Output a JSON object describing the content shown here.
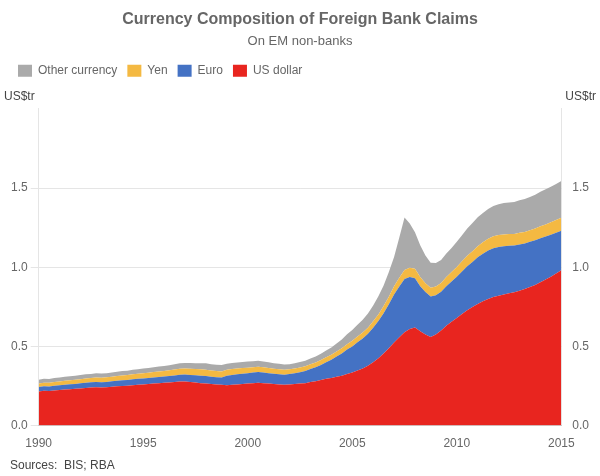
{
  "chart_data": {
    "type": "area",
    "stacked": true,
    "title": "Currency Composition of Foreign Bank Claims",
    "subtitle": "On EM non-banks",
    "ylabel": "US$tr",
    "y2label": "US$tr",
    "source": "Sources:  BIS; RBA",
    "legend": "upper left",
    "grid": "y",
    "x": [
      1990.0,
      1990.25,
      1990.5,
      1990.75,
      1991.0,
      1991.25,
      1991.5,
      1991.75,
      1992.0,
      1992.25,
      1992.5,
      1992.75,
      1993.0,
      1993.25,
      1993.5,
      1993.75,
      1994.0,
      1994.25,
      1994.5,
      1994.75,
      1995.0,
      1995.25,
      1995.5,
      1995.75,
      1996.0,
      1996.25,
      1996.5,
      1996.75,
      1997.0,
      1997.25,
      1997.5,
      1997.75,
      1998.0,
      1998.25,
      1998.5,
      1998.75,
      1999.0,
      1999.25,
      1999.5,
      1999.75,
      2000.0,
      2000.25,
      2000.5,
      2000.75,
      2001.0,
      2001.25,
      2001.5,
      2001.75,
      2002.0,
      2002.25,
      2002.5,
      2002.75,
      2003.0,
      2003.25,
      2003.5,
      2003.75,
      2004.0,
      2004.25,
      2004.5,
      2004.75,
      2005.0,
      2005.25,
      2005.5,
      2005.75,
      2006.0,
      2006.25,
      2006.5,
      2006.75,
      2007.0,
      2007.25,
      2007.5,
      2007.75,
      2008.0,
      2008.25,
      2008.5,
      2008.75,
      2009.0,
      2009.25,
      2009.5,
      2009.75,
      2010.0,
      2010.25,
      2010.5,
      2010.75,
      2011.0,
      2011.25,
      2011.5,
      2011.75,
      2012.0,
      2012.25,
      2012.5,
      2012.75,
      2013.0,
      2013.25,
      2013.5,
      2013.75,
      2014.0,
      2014.25,
      2014.5,
      2014.75,
      2015.0
    ],
    "series": [
      {
        "name": "US dollar",
        "color": "#e8251f",
        "values": [
          0.215,
          0.22,
          0.218,
          0.222,
          0.225,
          0.228,
          0.23,
          0.232,
          0.235,
          0.238,
          0.24,
          0.242,
          0.24,
          0.242,
          0.245,
          0.248,
          0.25,
          0.252,
          0.255,
          0.258,
          0.26,
          0.262,
          0.265,
          0.268,
          0.27,
          0.272,
          0.275,
          0.278,
          0.278,
          0.275,
          0.272,
          0.268,
          0.265,
          0.262,
          0.26,
          0.258,
          0.255,
          0.258,
          0.26,
          0.262,
          0.265,
          0.268,
          0.27,
          0.268,
          0.265,
          0.262,
          0.26,
          0.258,
          0.26,
          0.262,
          0.265,
          0.268,
          0.275,
          0.28,
          0.288,
          0.295,
          0.3,
          0.308,
          0.315,
          0.325,
          0.335,
          0.348,
          0.36,
          0.378,
          0.4,
          0.425,
          0.455,
          0.488,
          0.525,
          0.558,
          0.59,
          0.61,
          0.62,
          0.595,
          0.575,
          0.56,
          0.575,
          0.6,
          0.63,
          0.655,
          0.68,
          0.705,
          0.728,
          0.748,
          0.768,
          0.785,
          0.8,
          0.812,
          0.82,
          0.828,
          0.835,
          0.842,
          0.852,
          0.862,
          0.875,
          0.888,
          0.905,
          0.922,
          0.94,
          0.96,
          0.98
        ]
      },
      {
        "name": "Euro",
        "color": "#4472c4",
        "values": [
          0.028,
          0.028,
          0.029,
          0.029,
          0.03,
          0.03,
          0.031,
          0.031,
          0.032,
          0.032,
          0.033,
          0.033,
          0.034,
          0.034,
          0.035,
          0.035,
          0.036,
          0.036,
          0.037,
          0.037,
          0.038,
          0.038,
          0.039,
          0.039,
          0.04,
          0.041,
          0.042,
          0.043,
          0.044,
          0.045,
          0.046,
          0.047,
          0.048,
          0.047,
          0.046,
          0.046,
          0.06,
          0.062,
          0.064,
          0.065,
          0.066,
          0.067,
          0.068,
          0.067,
          0.066,
          0.065,
          0.064,
          0.063,
          0.065,
          0.068,
          0.072,
          0.076,
          0.082,
          0.088,
          0.095,
          0.105,
          0.115,
          0.128,
          0.14,
          0.155,
          0.165,
          0.178,
          0.19,
          0.202,
          0.218,
          0.235,
          0.255,
          0.278,
          0.302,
          0.32,
          0.335,
          0.328,
          0.31,
          0.285,
          0.268,
          0.255,
          0.248,
          0.245,
          0.25,
          0.255,
          0.26,
          0.268,
          0.278,
          0.285,
          0.295,
          0.3,
          0.305,
          0.308,
          0.308,
          0.305,
          0.3,
          0.295,
          0.292,
          0.288,
          0.285,
          0.282,
          0.278,
          0.272,
          0.265,
          0.258,
          0.25
        ]
      },
      {
        "name": "Yen",
        "color": "#f4b942",
        "values": [
          0.022,
          0.023,
          0.023,
          0.024,
          0.024,
          0.025,
          0.025,
          0.026,
          0.026,
          0.027,
          0.027,
          0.028,
          0.028,
          0.029,
          0.029,
          0.03,
          0.03,
          0.031,
          0.032,
          0.032,
          0.033,
          0.034,
          0.034,
          0.035,
          0.035,
          0.036,
          0.037,
          0.038,
          0.038,
          0.039,
          0.04,
          0.04,
          0.04,
          0.039,
          0.038,
          0.038,
          0.037,
          0.037,
          0.036,
          0.036,
          0.035,
          0.034,
          0.034,
          0.033,
          0.033,
          0.032,
          0.032,
          0.031,
          0.031,
          0.03,
          0.03,
          0.03,
          0.03,
          0.03,
          0.031,
          0.031,
          0.032,
          0.032,
          0.033,
          0.034,
          0.035,
          0.036,
          0.037,
          0.038,
          0.04,
          0.042,
          0.045,
          0.048,
          0.052,
          0.055,
          0.058,
          0.058,
          0.06,
          0.058,
          0.056,
          0.055,
          0.055,
          0.056,
          0.058,
          0.06,
          0.062,
          0.064,
          0.066,
          0.068,
          0.07,
          0.072,
          0.074,
          0.075,
          0.075,
          0.074,
          0.074,
          0.073,
          0.073,
          0.073,
          0.073,
          0.074,
          0.075,
          0.076,
          0.078,
          0.08,
          0.082
        ]
      },
      {
        "name": "Other currency",
        "color": "#aaaaaa",
        "values": [
          0.025,
          0.025,
          0.024,
          0.025,
          0.025,
          0.026,
          0.025,
          0.026,
          0.026,
          0.027,
          0.026,
          0.027,
          0.027,
          0.026,
          0.027,
          0.027,
          0.028,
          0.028,
          0.028,
          0.029,
          0.03,
          0.03,
          0.031,
          0.031,
          0.032,
          0.032,
          0.033,
          0.034,
          0.035,
          0.036,
          0.036,
          0.038,
          0.04,
          0.04,
          0.04,
          0.04,
          0.038,
          0.038,
          0.038,
          0.038,
          0.038,
          0.038,
          0.038,
          0.037,
          0.036,
          0.035,
          0.034,
          0.033,
          0.032,
          0.033,
          0.034,
          0.035,
          0.036,
          0.038,
          0.04,
          0.043,
          0.046,
          0.05,
          0.055,
          0.062,
          0.068,
          0.075,
          0.082,
          0.09,
          0.1,
          0.115,
          0.13,
          0.155,
          0.185,
          0.255,
          0.33,
          0.28,
          0.23,
          0.2,
          0.175,
          0.158,
          0.148,
          0.145,
          0.148,
          0.152,
          0.158,
          0.165,
          0.172,
          0.178,
          0.182,
          0.185,
          0.188,
          0.192,
          0.195,
          0.198,
          0.2,
          0.202,
          0.205,
          0.208,
          0.21,
          0.213,
          0.218,
          0.222,
          0.225,
          0.228,
          0.232
        ]
      }
    ],
    "xlim": [
      1990,
      2015
    ],
    "xticks": [
      1990,
      1995,
      2000,
      2005,
      2010,
      2015
    ],
    "ylim": [
      0.0,
      2.0
    ],
    "yticks": [
      {
        "value": 0.0,
        "label": "0.0"
      },
      0.5,
      {
        "value": 1.0,
        "label": "1.0"
      },
      1.5
    ],
    "y2lim": [
      0.0,
      2.0
    ],
    "y2ticks": [
      {
        "value": 0.0,
        "label": "0.0"
      },
      0.5,
      {
        "value": 1.0,
        "label": "1.0"
      },
      1.5
    ]
  }
}
